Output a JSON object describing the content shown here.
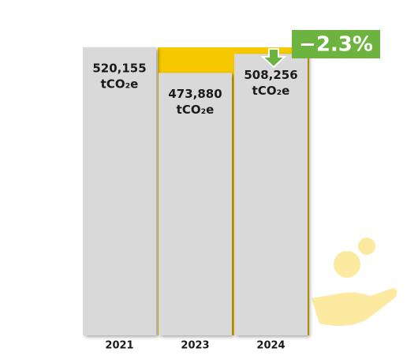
{
  "chart_data": {
    "type": "bar",
    "categories": [
      "2021",
      "2023",
      "2024"
    ],
    "values": [
      520155,
      473880,
      508256
    ],
    "value_labels": [
      "520,155",
      "473,880",
      "508,256"
    ],
    "unit": "tCO₂e",
    "color": "#d9d9d9",
    "annotation": "−2.3%"
  }
}
